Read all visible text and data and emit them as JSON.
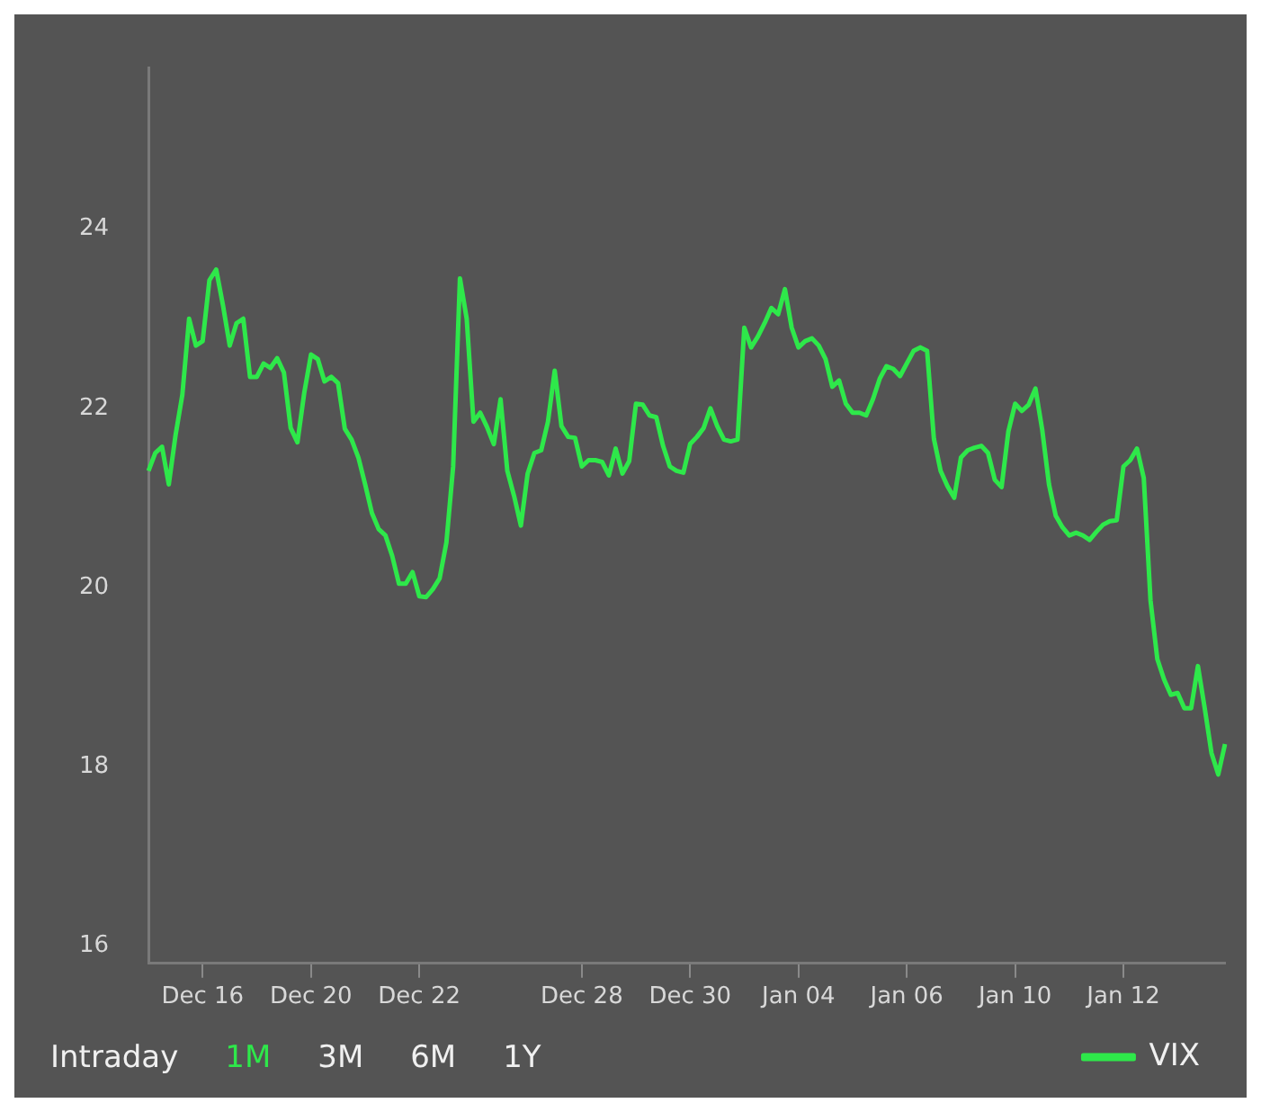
{
  "chart_data": {
    "type": "line",
    "categories": [
      null,
      null,
      null,
      null,
      null,
      null,
      null,
      null,
      "Dec 16",
      null,
      null,
      null,
      null,
      null,
      null,
      null,
      null,
      null,
      null,
      null,
      null,
      null,
      null,
      null,
      "Dec 20",
      null,
      null,
      null,
      null,
      null,
      null,
      null,
      null,
      null,
      null,
      null,
      null,
      null,
      null,
      null,
      "Dec 22",
      null,
      null,
      null,
      null,
      null,
      null,
      null,
      null,
      null,
      null,
      null,
      null,
      null,
      null,
      null,
      null,
      null,
      null,
      null,
      null,
      null,
      null,
      null,
      "Dec 28",
      null,
      null,
      null,
      null,
      null,
      null,
      null,
      null,
      null,
      null,
      null,
      null,
      null,
      null,
      null,
      "Dec 30",
      null,
      null,
      null,
      null,
      null,
      null,
      null,
      null,
      null,
      null,
      null,
      null,
      null,
      null,
      null,
      "Jan 04",
      null,
      null,
      null,
      null,
      null,
      null,
      null,
      null,
      null,
      null,
      null,
      null,
      null,
      null,
      null,
      "Jan 06",
      null,
      null,
      null,
      null,
      null,
      null,
      null,
      null,
      null,
      null,
      null,
      null,
      null,
      null,
      null,
      "Jan 10",
      null,
      null,
      null,
      null,
      null,
      null,
      null,
      null,
      null,
      null,
      null,
      null,
      null,
      null,
      null,
      "Jan 12",
      null,
      null,
      null,
      null,
      null,
      null,
      null,
      null,
      null,
      null,
      null,
      null,
      null,
      null,
      null
    ],
    "series": [
      {
        "name": "VIX",
        "color": "#2ee84a",
        "values": [
          21.3,
          21.5,
          21.57,
          21.15,
          21.7,
          22.15,
          23.0,
          22.7,
          22.75,
          23.43,
          23.55,
          23.15,
          22.7,
          22.95,
          23.0,
          22.35,
          22.35,
          22.5,
          22.45,
          22.56,
          22.4,
          21.78,
          21.62,
          22.17,
          22.6,
          22.55,
          22.3,
          22.35,
          22.28,
          21.77,
          21.65,
          21.45,
          21.15,
          20.83,
          20.65,
          20.58,
          20.35,
          20.04,
          20.04,
          20.17,
          19.9,
          19.89,
          19.98,
          20.1,
          20.5,
          21.35,
          23.45,
          23.0,
          21.85,
          21.95,
          21.79,
          21.6,
          22.1,
          21.3,
          21.02,
          20.69,
          21.27,
          21.5,
          21.53,
          21.85,
          22.42,
          21.8,
          21.68,
          21.67,
          21.35,
          21.42,
          21.42,
          21.4,
          21.25,
          21.55,
          21.27,
          21.41,
          22.05,
          22.04,
          21.92,
          21.9,
          21.58,
          21.35,
          21.3,
          21.28,
          21.6,
          21.68,
          21.78,
          22.0,
          21.8,
          21.65,
          21.63,
          21.65,
          22.9,
          22.68,
          22.8,
          22.95,
          23.12,
          23.05,
          23.33,
          22.9,
          22.68,
          22.75,
          22.78,
          22.7,
          22.55,
          22.24,
          22.31,
          22.05,
          21.95,
          21.95,
          21.92,
          22.1,
          22.33,
          22.47,
          22.44,
          22.36,
          22.5,
          22.64,
          22.68,
          22.64,
          21.66,
          21.3,
          21.13,
          21.0,
          21.45,
          21.53,
          21.56,
          21.58,
          21.5,
          21.2,
          21.12,
          21.74,
          22.05,
          21.97,
          22.04,
          22.22,
          21.76,
          21.15,
          20.8,
          20.67,
          20.58,
          20.61,
          20.58,
          20.53,
          20.62,
          20.7,
          20.74,
          20.75,
          21.35,
          21.42,
          21.55,
          21.22,
          19.85,
          19.2,
          18.97,
          18.8,
          18.82,
          18.65,
          18.65,
          19.12,
          18.65,
          18.15,
          17.91,
          18.25
        ]
      }
    ],
    "ylim": [
      15.8,
      25.8
    ],
    "yticks": [
      16,
      18,
      20,
      22,
      24
    ],
    "grid": false,
    "legend": "bottom right",
    "marker": "none",
    "line_style": "solid",
    "annotations": [
      "Intraday",
      "1M",
      "3M",
      "6M",
      "1Y"
    ]
  }
}
